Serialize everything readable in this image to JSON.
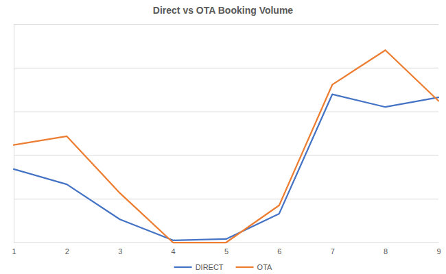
{
  "chart_data": {
    "type": "line",
    "title": "Direct vs OTA Booking Volume",
    "x": [
      1,
      2,
      3,
      4,
      5,
      6,
      7,
      8,
      9
    ],
    "series": [
      {
        "name": "DIRECT",
        "color": "#4472c4",
        "values": [
          1.68,
          1.33,
          0.53,
          0.05,
          0.08,
          0.66,
          3.39,
          3.1,
          3.32
        ]
      },
      {
        "name": "OTA",
        "color": "#ed7d31",
        "values": [
          2.23,
          2.43,
          1.13,
          0,
          0,
          0.85,
          3.61,
          4.4,
          3.24
        ]
      }
    ],
    "xlim": [
      1,
      9
    ],
    "xticks": [
      1,
      2,
      3,
      4,
      5,
      6,
      7,
      8,
      9
    ],
    "ylim": [
      0,
      5
    ],
    "yticks": [
      0,
      1,
      2,
      3,
      4,
      5
    ],
    "grid": true,
    "tick_labels": "x",
    "legend": "bottom"
  }
}
